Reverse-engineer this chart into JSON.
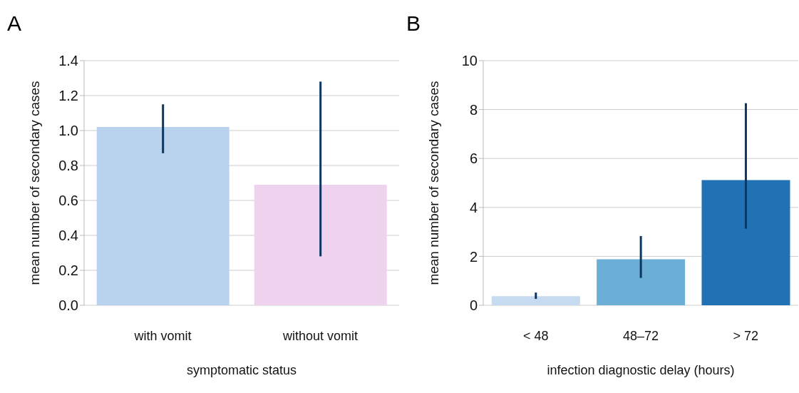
{
  "chart_data": [
    {
      "type": "bar",
      "title": "A",
      "xlabel": "symptomatic status",
      "ylabel": "mean number of secondary cases",
      "categories": [
        "with vomit",
        "without vomit"
      ],
      "values": [
        1.02,
        0.69
      ],
      "colors": [
        "#b9d3ee",
        "#eed2ee"
      ],
      "errors": [
        [
          0.87,
          1.15
        ],
        [
          0.28,
          1.28
        ]
      ],
      "ylim": [
        0,
        1.4
      ],
      "yticks": [
        {
          "value": 0,
          "label": "0.0"
        },
        {
          "value": 0.2,
          "label": "0.2"
        },
        {
          "value": 0.4,
          "label": "0.4"
        },
        {
          "value": 0.6,
          "label": "0.6"
        },
        {
          "value": 0.8,
          "label": "0.8"
        },
        {
          "value": 1,
          "label": "1.0"
        },
        {
          "value": 1.2,
          "label": "1.2"
        },
        {
          "value": 1.4,
          "label": "1.4"
        }
      ],
      "grid": "y"
    },
    {
      "type": "bar",
      "title": "B",
      "xlabel": "infection diagnostic delay (hours)",
      "ylabel": "mean number of secondary cases",
      "categories": [
        "< 48",
        "48–72",
        "> 72"
      ],
      "values": [
        0.37,
        1.88,
        5.12
      ],
      "colors": [
        "#c6dbef",
        "#6baed6",
        "#2171b5"
      ],
      "errors": [
        [
          0.26,
          0.52
        ],
        [
          1.12,
          2.83
        ],
        [
          3.13,
          8.26
        ]
      ],
      "ylim": [
        0,
        10
      ],
      "yticks": [
        0,
        2,
        4,
        6,
        8,
        10
      ],
      "grid": "y"
    }
  ]
}
